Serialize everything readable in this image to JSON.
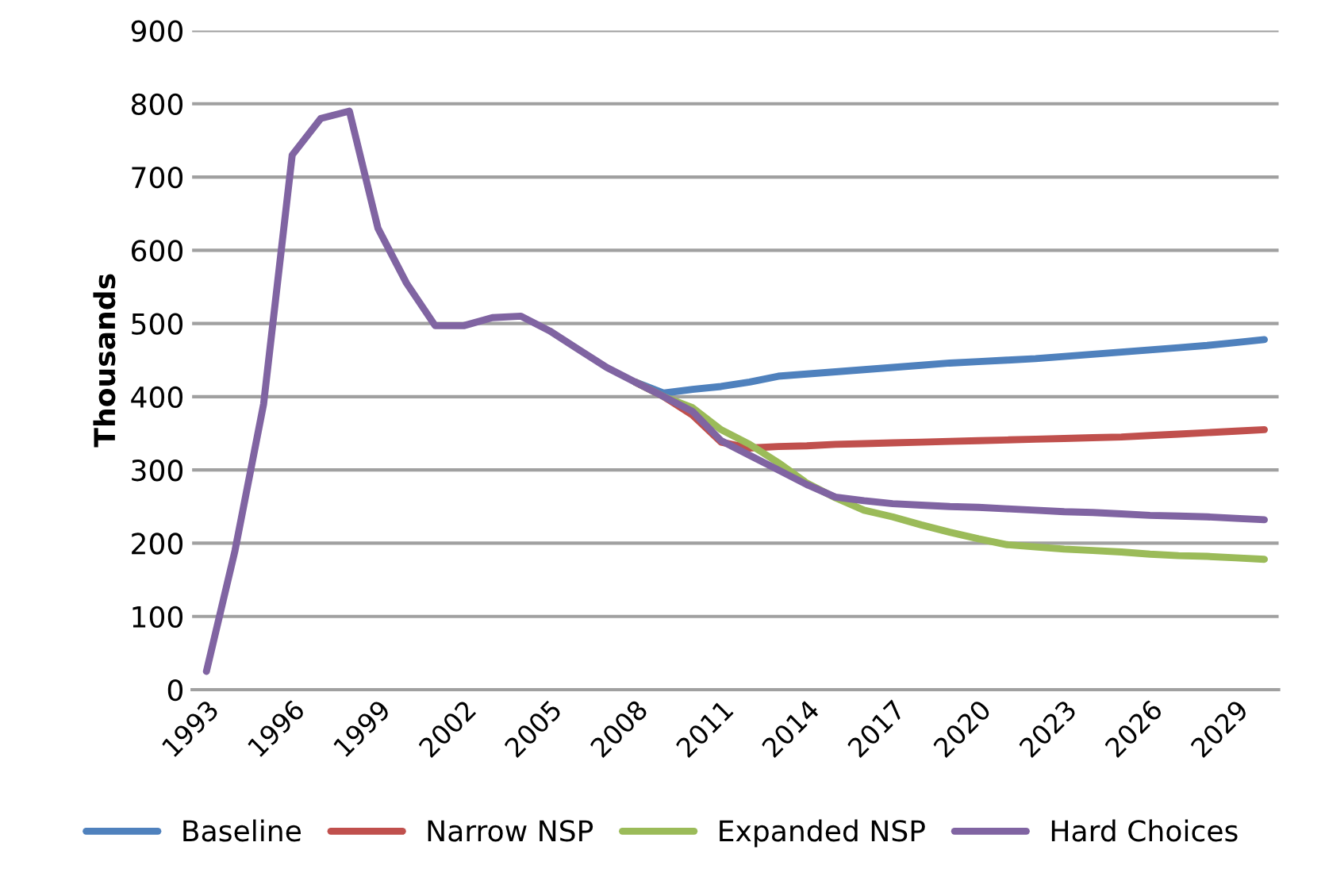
{
  "chart_data": {
    "type": "line",
    "ylabel": "Thousands",
    "categories": [
      "1993",
      null,
      null,
      "1996",
      null,
      null,
      "1999",
      null,
      null,
      "2002",
      null,
      null,
      "2005",
      null,
      null,
      "2008",
      null,
      null,
      "2011",
      null,
      null,
      "2014",
      null,
      null,
      "2017",
      null,
      null,
      "2020",
      null,
      null,
      "2023",
      null,
      null,
      "2026",
      null,
      null,
      "2029",
      null
    ],
    "series": [
      {
        "name": "Baseline",
        "color": "#4f81bd",
        "values": [
          null,
          null,
          null,
          null,
          null,
          null,
          null,
          null,
          null,
          null,
          null,
          null,
          null,
          null,
          null,
          420,
          405,
          410,
          414,
          420,
          428,
          431,
          434,
          437,
          440,
          443,
          446,
          448,
          450,
          452,
          455,
          458,
          461,
          464,
          467,
          470,
          474,
          478
        ]
      },
      {
        "name": "Narrow NSP",
        "color": "#c0504d",
        "values": [
          null,
          null,
          null,
          null,
          null,
          null,
          null,
          null,
          null,
          null,
          null,
          null,
          null,
          null,
          null,
          420,
          400,
          375,
          338,
          330,
          332,
          333,
          335,
          336,
          337,
          338,
          339,
          340,
          341,
          342,
          343,
          344,
          345,
          347,
          349,
          351,
          353,
          355
        ]
      },
      {
        "name": "Expanded NSP",
        "color": "#9bbb59",
        "values": [
          null,
          null,
          null,
          null,
          null,
          null,
          null,
          null,
          null,
          null,
          null,
          null,
          null,
          null,
          null,
          420,
          400,
          385,
          355,
          335,
          310,
          282,
          262,
          245,
          236,
          225,
          215,
          206,
          198,
          195,
          192,
          190,
          188,
          185,
          183,
          182,
          180,
          178
        ]
      },
      {
        "name": "Hard Choices",
        "color": "#8064a2",
        "values": [
          25,
          190,
          390,
          730,
          780,
          790,
          630,
          555,
          497,
          497,
          508,
          510,
          490,
          465,
          440,
          420,
          400,
          380,
          340,
          320,
          300,
          280,
          263,
          258,
          254,
          252,
          250,
          249,
          247,
          245,
          243,
          242,
          240,
          238,
          237,
          236,
          234,
          232
        ]
      }
    ],
    "ylim": [
      0,
      900
    ],
    "yticks": [
      0,
      100,
      200,
      300,
      400,
      500,
      600,
      700,
      800,
      900
    ],
    "grid": "y",
    "legend": "bottom",
    "marker": "none",
    "line_style": "solid"
  }
}
